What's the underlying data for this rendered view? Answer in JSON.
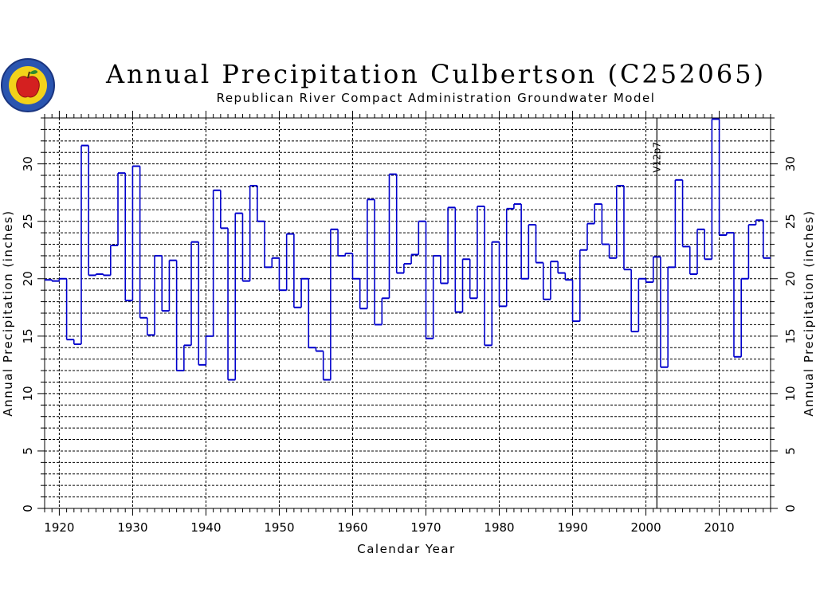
{
  "chart_data": {
    "type": "line",
    "step": true,
    "title": "Annual Precipitation Culbertson (C252065)",
    "subtitle": "Republican River Compact Administration Groundwater Model",
    "xlabel": "Calendar Year",
    "ylabel": "Annual Precipitation (inches)",
    "xlim": [
      1918,
      2017
    ],
    "ylim": [
      0,
      34
    ],
    "xticks": [
      1920,
      1930,
      1940,
      1950,
      1960,
      1970,
      1980,
      1990,
      2000,
      2010
    ],
    "yticks": [
      0,
      5,
      10,
      15,
      20,
      25,
      30
    ],
    "grid": true,
    "line_color": "#0000cc",
    "annotations": [
      {
        "x": 2001,
        "text": "V12p7"
      }
    ],
    "series": [
      {
        "x": [
          1918,
          1919,
          1920,
          1921,
          1922,
          1923,
          1924,
          1925,
          1926,
          1927,
          1928,
          1929,
          1930,
          1931,
          1932,
          1933,
          1934,
          1935,
          1936,
          1937,
          1938,
          1939,
          1940,
          1941,
          1942,
          1943,
          1944,
          1945,
          1946,
          1947,
          1948,
          1949,
          1950,
          1951,
          1952,
          1953,
          1954,
          1955,
          1956,
          1957,
          1958,
          1959,
          1960,
          1961,
          1962,
          1963,
          1964,
          1965,
          1966,
          1967,
          1968,
          1969,
          1970,
          1971,
          1972,
          1973,
          1974,
          1975,
          1976,
          1977,
          1978,
          1979,
          1980,
          1981,
          1982,
          1983,
          1984,
          1985,
          1986,
          1987,
          1988,
          1989,
          1990,
          1991,
          1992,
          1993,
          1994,
          1995,
          1996,
          1997,
          1998,
          1999,
          2000,
          2001,
          2002,
          2003,
          2004,
          2005,
          2006,
          2007,
          2008,
          2009,
          2010,
          2011,
          2012,
          2013,
          2014,
          2015,
          2016
        ],
        "values": [
          19.9,
          19.8,
          20.0,
          14.7,
          14.3,
          31.6,
          20.3,
          20.4,
          20.3,
          22.9,
          29.2,
          18.1,
          29.8,
          16.6,
          15.1,
          22.0,
          17.2,
          21.6,
          12.0,
          14.2,
          23.2,
          12.5,
          15.0,
          27.7,
          24.4,
          11.2,
          25.7,
          19.8,
          28.1,
          25.0,
          21.0,
          21.8,
          19.0,
          23.9,
          17.5,
          20.0,
          14.0,
          13.7,
          11.2,
          24.3,
          22.0,
          22.2,
          20.0,
          17.4,
          26.9,
          16.0,
          18.3,
          29.1,
          20.5,
          21.3,
          22.1,
          25.0,
          14.8,
          22.0,
          19.6,
          26.2,
          17.1,
          21.7,
          18.3,
          26.3,
          14.2,
          23.2,
          17.6,
          26.1,
          26.5,
          20.0,
          24.7,
          21.4,
          18.2,
          21.5,
          20.5,
          19.9,
          16.3,
          22.5,
          24.8,
          26.5,
          23.0,
          21.8,
          28.1,
          20.8,
          15.4,
          20.0,
          19.7,
          21.9,
          12.3,
          21.0,
          28.6,
          22.8,
          20.4,
          24.3,
          21.7,
          33.9,
          23.8,
          24.0,
          13.2,
          20.0,
          24.7,
          25.1,
          21.8
        ]
      }
    ]
  }
}
